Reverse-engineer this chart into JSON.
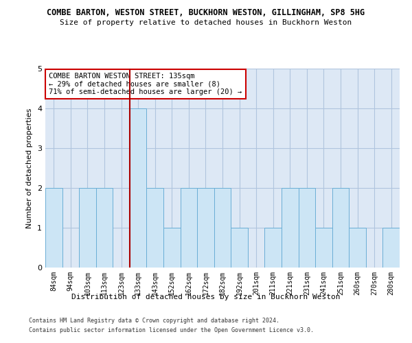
{
  "title": "COMBE BARTON, WESTON STREET, BUCKHORN WESTON, GILLINGHAM, SP8 5HG",
  "subtitle": "Size of property relative to detached houses in Buckhorn Weston",
  "xlabel": "Distribution of detached houses by size in Buckhorn Weston",
  "ylabel": "Number of detached properties",
  "categories": [
    "84sqm",
    "94sqm",
    "103sqm",
    "113sqm",
    "123sqm",
    "133sqm",
    "143sqm",
    "152sqm",
    "162sqm",
    "172sqm",
    "182sqm",
    "192sqm",
    "201sqm",
    "211sqm",
    "221sqm",
    "231sqm",
    "241sqm",
    "251sqm",
    "260sqm",
    "270sqm",
    "280sqm"
  ],
  "values": [
    2,
    0,
    2,
    2,
    0,
    4,
    2,
    1,
    2,
    2,
    2,
    1,
    0,
    1,
    2,
    2,
    1,
    2,
    1,
    0,
    1
  ],
  "highlight_index": 5,
  "bar_color": "#cce5f5",
  "bar_edge_color": "#6aaed6",
  "highlight_line_color": "#aa0000",
  "ylim": [
    0,
    5
  ],
  "yticks": [
    0,
    1,
    2,
    3,
    4,
    5
  ],
  "annotation_text": "COMBE BARTON WESTON STREET: 135sqm\n← 29% of detached houses are smaller (8)\n71% of semi-detached houses are larger (20) →",
  "footer1": "Contains HM Land Registry data © Crown copyright and database right 2024.",
  "footer2": "Contains public sector information licensed under the Open Government Licence v3.0.",
  "bg_color": "#ffffff",
  "plot_bg_color": "#dde8f5",
  "grid_color": "#b0c4de"
}
